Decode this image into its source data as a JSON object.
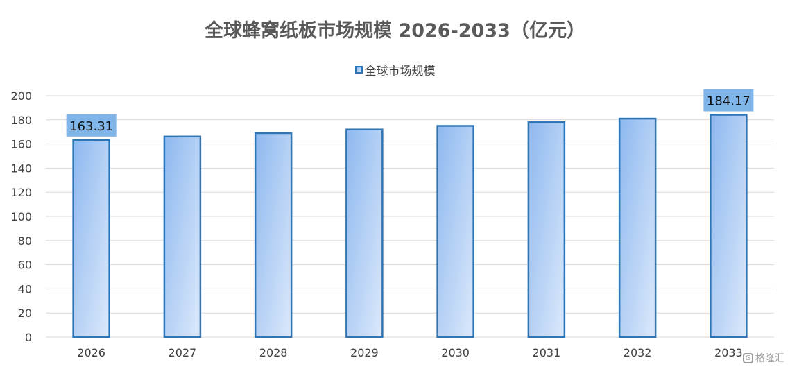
{
  "chart_data": {
    "type": "bar",
    "title": "全球蜂窝纸板市场规模 2026-2033（亿元）",
    "categories": [
      "2026",
      "2027",
      "2028",
      "2029",
      "2030",
      "2031",
      "2032",
      "2033"
    ],
    "series": [
      {
        "name": "全球市场规模",
        "values": [
          163.31,
          166.2,
          169.0,
          172.0,
          175.0,
          178.0,
          181.0,
          184.17
        ],
        "data_labels": {
          "2026": "163.31",
          "2033": "184.17"
        }
      }
    ],
    "xlabel": "",
    "ylabel": "",
    "ylim": [
      0,
      200
    ],
    "yticks": [
      0,
      20,
      40,
      60,
      80,
      100,
      120,
      140,
      160,
      180,
      200
    ],
    "grid": true,
    "legend_position": "top"
  },
  "colors": {
    "bar_border": "#2e75b6",
    "bar_fill_top": "#8db8ef",
    "bar_fill_bottom": "#dce9fb",
    "label_bg": "#7fb5e8",
    "grid": "#d9d9d9",
    "axis_text": "#404040"
  },
  "watermark": {
    "icon": "logo-icon",
    "text": "格隆汇"
  }
}
